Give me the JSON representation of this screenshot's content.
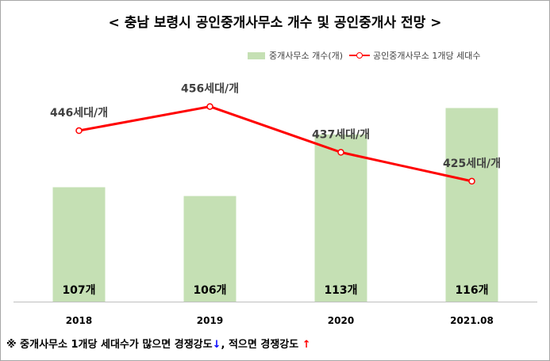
{
  "title": "< 충남 보령시 공인중개사무소 개수 및 공인중개사 전망 >",
  "colors": {
    "bar": "#c5e0b4",
    "line": "#ff0000",
    "axis": "#bfbfbf",
    "grid": "#d9d9d9",
    "label_dark": "#000000",
    "label_line": "#404040"
  },
  "chart_data": {
    "type": "bar",
    "categories": [
      "2018",
      "2019",
      "2020",
      "2021.08"
    ],
    "series": [
      {
        "name": "중개사무소 개수(개)",
        "chart_type": "bar",
        "axis": "left",
        "values": [
          107,
          106,
          113,
          116
        ],
        "data_labels": [
          "107개",
          "106개",
          "113개",
          "116개"
        ]
      },
      {
        "name": "공인중개사무소 1개당 세대수",
        "chart_type": "line",
        "axis": "right",
        "values": [
          446,
          456,
          437,
          425
        ],
        "data_labels": [
          "446세대/개",
          "456세대/개",
          "437세대/개",
          "425세대/개"
        ]
      }
    ],
    "y_left_range": [
      94,
      120
    ],
    "y_right_range": [
      375,
      470
    ],
    "grid": false,
    "legend_position": "top-right"
  },
  "footnote": {
    "text_before": "※ 중개사무소 1개당 세대수가 많으면 경쟁강도",
    "arrow_down": "↓",
    "text_middle": ", 적으면 경쟁강도 ",
    "arrow_up": "↑"
  }
}
